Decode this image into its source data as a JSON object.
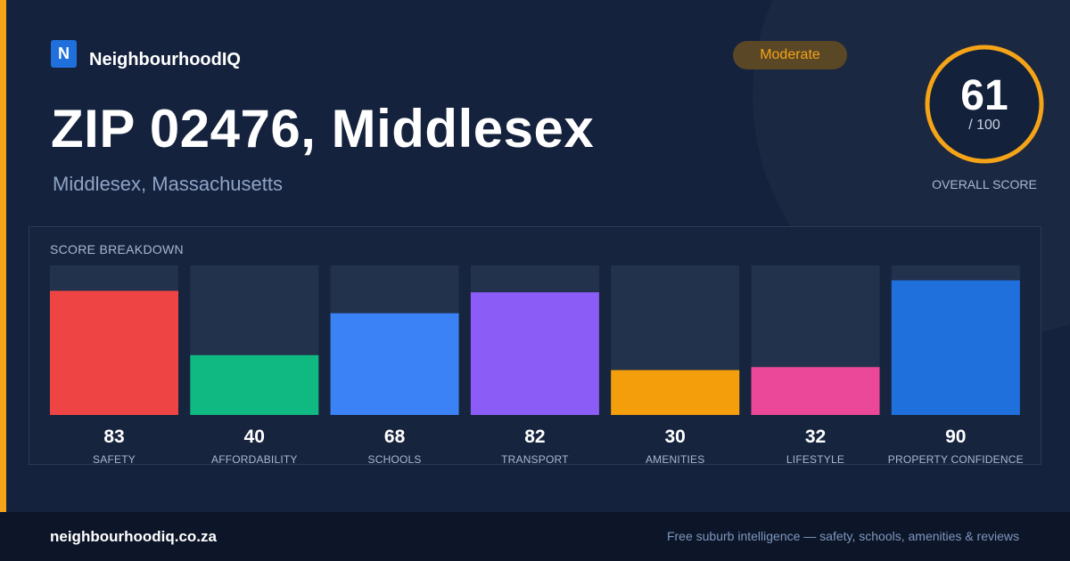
{
  "brand": {
    "logo_letter": "N",
    "name": "NeighbourhoodIQ"
  },
  "badge": {
    "label": "Moderate",
    "color": "#f5a418"
  },
  "header": {
    "title": "ZIP 02476, Middlesex",
    "subtitle": "Middlesex, Massachusetts"
  },
  "overall": {
    "score": "61",
    "max": "/ 100",
    "caption": "OVERALL SCORE",
    "fraction": 0.61,
    "ring_color": "#f5a418"
  },
  "breakdown": {
    "heading": "SCORE BREAKDOWN"
  },
  "chart_data": {
    "type": "bar",
    "title": "SCORE BREAKDOWN",
    "ylim": [
      0,
      100
    ],
    "categories": [
      "SAFETY",
      "AFFORDABILITY",
      "SCHOOLS",
      "TRANSPORT",
      "AMENITIES",
      "LIFESTYLE",
      "PROPERTY CONFIDENCE"
    ],
    "values": [
      83,
      40,
      68,
      82,
      30,
      32,
      90
    ],
    "colors": [
      "#ef4444",
      "#10b981",
      "#3b82f6",
      "#8b5cf6",
      "#f59e0b",
      "#ec4899",
      "#1f6fdc"
    ],
    "track_color": "#22314c"
  },
  "footer": {
    "site": "neighbourhoodiq.co.za",
    "tagline": "Free suburb intelligence — safety, schools, amenities & reviews"
  }
}
